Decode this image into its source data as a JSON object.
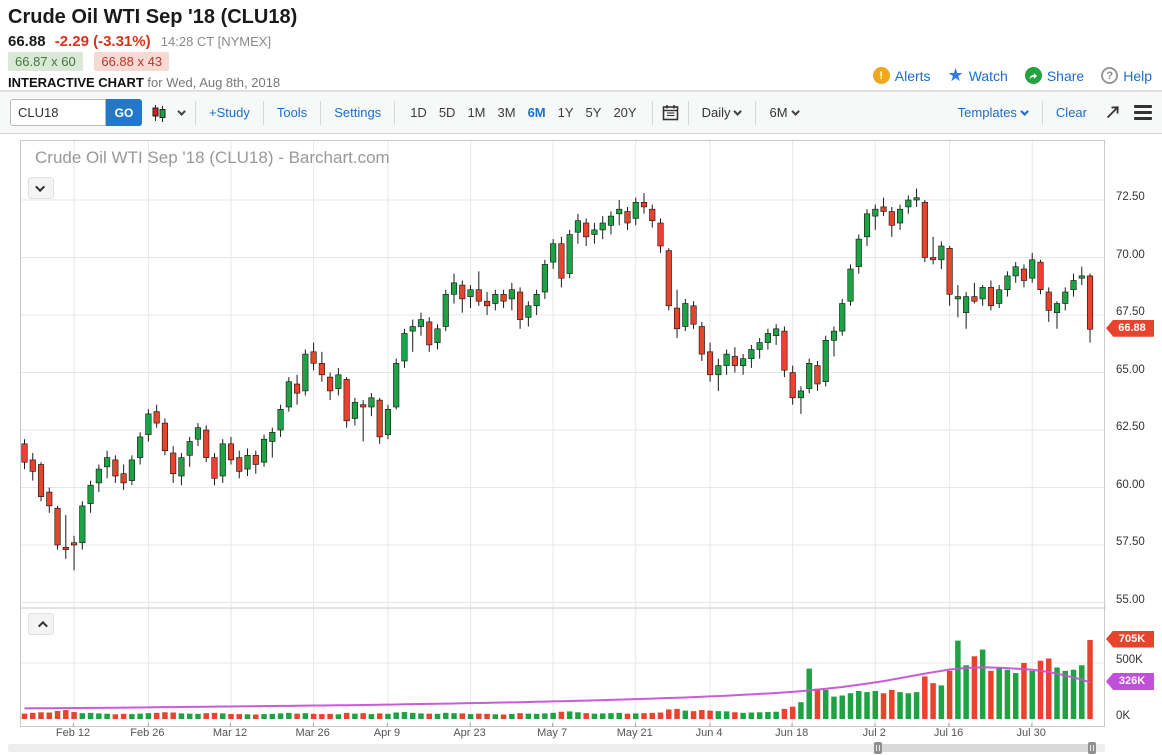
{
  "header": {
    "title": "Crude Oil WTI Sep '18 (CLU18)",
    "last": "66.88",
    "change": "-2.29 (-3.31%)",
    "time": "14:28 CT [NYMEX]",
    "bid": "66.87 x 60",
    "ask": "66.88 x 43",
    "chart_label": "INTERACTIVE CHART",
    "chart_date": "for Wed, Aug 8th, 2018",
    "actions": {
      "alerts": "Alerts",
      "watch": "Watch",
      "share": "Share",
      "help": "Help",
      "alert_glyph": "!",
      "help_glyph": "?",
      "star_glyph": "★"
    }
  },
  "toolbar": {
    "symbol_value": "CLU18",
    "go_label": "GO",
    "study": "+Study",
    "tools": "Tools",
    "settings": "Settings",
    "ranges": [
      "1D",
      "5D",
      "1M",
      "3M",
      "6M",
      "1Y",
      "5Y",
      "20Y"
    ],
    "active_range": "6M",
    "frequency": "Daily",
    "span": "6M",
    "templates": "Templates",
    "clear": "Clear"
  },
  "chart": {
    "watermark": "Crude Oil WTI Sep '18 (CLU18) - Barchart.com",
    "colors": {
      "up": "#1ea344",
      "down": "#e8432c",
      "open_interest": "#c653d6",
      "grid": "#e7e7e7",
      "separator": "#c9c9c9",
      "price_badge_bg": "#e8432c",
      "volume_badge_bg": "#e8432c",
      "oi_badge_bg": "#c050d8"
    }
  },
  "chart_data": {
    "type": "candlestick+volume",
    "symbol": "CLU18",
    "frequency": "Daily",
    "title": "Crude Oil WTI Sep '18 (CLU18) - Barchart.com",
    "last_price": 66.88,
    "price_gridlines": [
      72.5,
      70.0,
      67.5,
      65.0,
      62.5,
      60.0,
      57.5,
      55.0
    ],
    "volume_gridlines_k": [
      500,
      0
    ],
    "volume_badge_k": 705,
    "oi_badge_k": 326,
    "x_ticks": [
      {
        "label": "Feb 12",
        "i": 6
      },
      {
        "label": "Feb 26",
        "i": 15
      },
      {
        "label": "Mar 12",
        "i": 25
      },
      {
        "label": "Mar 26",
        "i": 35
      },
      {
        "label": "Apr 9",
        "i": 44
      },
      {
        "label": "Apr 23",
        "i": 54
      },
      {
        "label": "May 7",
        "i": 64
      },
      {
        "label": "May 21",
        "i": 74
      },
      {
        "label": "Jun 4",
        "i": 83
      },
      {
        "label": "Jun 18",
        "i": 93
      },
      {
        "label": "Jul 2",
        "i": 103
      },
      {
        "label": "Jul 16",
        "i": 112
      },
      {
        "label": "Jul 30",
        "i": 122
      }
    ],
    "ohlcv": [
      [
        61.9,
        62.1,
        60.8,
        61.1,
        48
      ],
      [
        61.2,
        61.5,
        60.3,
        60.7,
        55
      ],
      [
        61.0,
        61.1,
        59.4,
        59.6,
        60
      ],
      [
        59.8,
        60.0,
        58.9,
        59.2,
        58
      ],
      [
        59.1,
        59.2,
        57.3,
        57.5,
        72
      ],
      [
        57.4,
        58.8,
        56.9,
        57.3,
        80
      ],
      [
        57.6,
        57.9,
        56.4,
        57.5,
        62
      ],
      [
        57.6,
        59.4,
        57.3,
        59.2,
        52
      ],
      [
        59.3,
        60.3,
        58.9,
        60.1,
        55
      ],
      [
        60.2,
        61.0,
        59.8,
        60.8,
        50
      ],
      [
        60.9,
        61.6,
        60.4,
        61.3,
        47
      ],
      [
        61.2,
        61.4,
        60.2,
        60.5,
        42
      ],
      [
        60.6,
        61.0,
        59.9,
        60.2,
        46
      ],
      [
        60.3,
        61.4,
        60.1,
        61.2,
        44
      ],
      [
        61.3,
        62.4,
        61.0,
        62.2,
        48
      ],
      [
        62.3,
        63.4,
        62.0,
        63.2,
        52
      ],
      [
        63.3,
        63.6,
        62.6,
        62.8,
        55
      ],
      [
        62.8,
        63.0,
        61.4,
        61.6,
        60
      ],
      [
        61.5,
        61.8,
        60.2,
        60.6,
        58
      ],
      [
        60.5,
        61.5,
        60.1,
        61.3,
        50
      ],
      [
        61.4,
        62.2,
        60.9,
        62.0,
        48
      ],
      [
        62.1,
        62.8,
        61.8,
        62.6,
        46
      ],
      [
        62.5,
        62.7,
        61.1,
        61.3,
        52
      ],
      [
        61.3,
        61.5,
        60.1,
        60.4,
        55
      ],
      [
        60.5,
        62.1,
        60.2,
        61.9,
        50
      ],
      [
        61.9,
        62.2,
        61.0,
        61.2,
        45
      ],
      [
        61.3,
        61.6,
        60.4,
        60.7,
        44
      ],
      [
        60.8,
        61.7,
        60.5,
        61.4,
        42
      ],
      [
        61.4,
        61.6,
        60.6,
        61.0,
        40
      ],
      [
        61.1,
        62.3,
        60.9,
        62.1,
        44
      ],
      [
        62.0,
        62.6,
        61.3,
        62.4,
        46
      ],
      [
        62.5,
        63.6,
        62.2,
        63.4,
        50
      ],
      [
        63.5,
        64.8,
        63.3,
        64.6,
        55
      ],
      [
        64.5,
        64.9,
        63.6,
        64.1,
        48
      ],
      [
        64.2,
        66.0,
        64.0,
        65.8,
        52
      ],
      [
        65.9,
        66.3,
        65.1,
        65.4,
        46
      ],
      [
        65.4,
        65.9,
        64.6,
        64.9,
        44
      ],
      [
        64.8,
        65.0,
        63.8,
        64.2,
        46
      ],
      [
        64.3,
        65.2,
        64.0,
        64.9,
        42
      ],
      [
        64.7,
        64.8,
        62.6,
        62.9,
        55
      ],
      [
        63.0,
        63.9,
        62.7,
        63.7,
        48
      ],
      [
        63.6,
        63.8,
        62.0,
        63.5,
        52
      ],
      [
        63.5,
        64.1,
        63.1,
        63.9,
        44
      ],
      [
        63.8,
        63.9,
        61.9,
        62.2,
        50
      ],
      [
        62.3,
        63.6,
        62.1,
        63.4,
        46
      ],
      [
        63.5,
        65.6,
        63.4,
        65.4,
        58
      ],
      [
        65.5,
        66.9,
        65.2,
        66.7,
        62
      ],
      [
        66.8,
        67.3,
        65.9,
        67.0,
        55
      ],
      [
        67.0,
        67.6,
        66.6,
        67.3,
        50
      ],
      [
        67.2,
        67.4,
        65.9,
        66.2,
        48
      ],
      [
        66.3,
        67.1,
        66.0,
        66.9,
        46
      ],
      [
        67.0,
        68.6,
        66.8,
        68.4,
        55
      ],
      [
        68.4,
        69.3,
        68.0,
        68.9,
        52
      ],
      [
        68.8,
        69.0,
        67.6,
        68.2,
        50
      ],
      [
        68.3,
        68.8,
        67.8,
        68.6,
        44
      ],
      [
        68.6,
        69.4,
        67.9,
        68.1,
        48
      ],
      [
        68.1,
        68.5,
        67.5,
        67.9,
        46
      ],
      [
        68.0,
        68.6,
        67.7,
        68.4,
        42
      ],
      [
        68.4,
        68.6,
        67.8,
        68.1,
        40
      ],
      [
        68.2,
        68.9,
        67.7,
        68.6,
        45
      ],
      [
        68.5,
        68.7,
        66.9,
        67.3,
        52
      ],
      [
        67.4,
        68.1,
        67.0,
        67.9,
        48
      ],
      [
        67.9,
        68.6,
        67.5,
        68.4,
        46
      ],
      [
        68.5,
        69.9,
        68.2,
        69.7,
        50
      ],
      [
        69.8,
        70.8,
        69.5,
        70.6,
        55
      ],
      [
        70.6,
        70.9,
        68.7,
        69.1,
        65
      ],
      [
        69.3,
        71.2,
        69.1,
        71.0,
        68
      ],
      [
        71.1,
        71.9,
        70.6,
        71.6,
        60
      ],
      [
        71.5,
        71.7,
        70.5,
        70.9,
        52
      ],
      [
        71.0,
        71.5,
        70.6,
        71.2,
        48
      ],
      [
        71.2,
        71.8,
        70.8,
        71.5,
        50
      ],
      [
        71.4,
        72.0,
        71.0,
        71.8,
        52
      ],
      [
        71.9,
        72.5,
        71.4,
        72.1,
        55
      ],
      [
        72.0,
        72.2,
        71.2,
        71.5,
        48
      ],
      [
        71.7,
        72.6,
        71.4,
        72.4,
        50
      ],
      [
        72.4,
        72.8,
        71.9,
        72.2,
        52
      ],
      [
        72.1,
        72.3,
        71.3,
        71.6,
        55
      ],
      [
        71.5,
        71.7,
        70.2,
        70.5,
        58
      ],
      [
        70.3,
        70.4,
        67.7,
        67.9,
        85
      ],
      [
        67.8,
        68.6,
        66.5,
        66.9,
        90
      ],
      [
        67.0,
        68.2,
        66.8,
        68.0,
        75
      ],
      [
        67.9,
        68.1,
        66.9,
        67.1,
        70
      ],
      [
        67.0,
        67.2,
        65.5,
        65.8,
        80
      ],
      [
        65.9,
        66.3,
        64.6,
        64.9,
        75
      ],
      [
        64.9,
        65.6,
        64.2,
        65.3,
        70
      ],
      [
        65.3,
        66.0,
        64.9,
        65.8,
        68
      ],
      [
        65.7,
        66.1,
        65.0,
        65.3,
        60
      ],
      [
        65.3,
        65.8,
        64.9,
        65.6,
        55
      ],
      [
        65.6,
        66.2,
        65.2,
        66.0,
        58
      ],
      [
        66.0,
        66.5,
        65.6,
        66.3,
        60
      ],
      [
        66.3,
        66.9,
        66.0,
        66.7,
        62
      ],
      [
        66.6,
        67.1,
        66.2,
        66.9,
        65
      ],
      [
        66.8,
        67.0,
        64.8,
        65.1,
        90
      ],
      [
        65.0,
        65.3,
        63.6,
        63.9,
        110
      ],
      [
        63.9,
        64.4,
        63.2,
        64.2,
        150
      ],
      [
        64.3,
        65.6,
        64.1,
        65.4,
        450
      ],
      [
        65.3,
        65.5,
        64.2,
        64.5,
        270
      ],
      [
        64.6,
        66.6,
        64.4,
        66.4,
        260
      ],
      [
        66.4,
        67.0,
        65.7,
        66.8,
        200
      ],
      [
        66.8,
        68.2,
        66.6,
        68.0,
        210
      ],
      [
        68.1,
        69.7,
        67.9,
        69.5,
        230
      ],
      [
        69.6,
        71.0,
        69.3,
        70.8,
        250
      ],
      [
        70.9,
        72.1,
        70.5,
        71.9,
        240
      ],
      [
        71.8,
        72.3,
        71.2,
        72.1,
        250
      ],
      [
        72.2,
        72.6,
        71.8,
        72.0,
        230
      ],
      [
        72.0,
        72.2,
        70.9,
        71.4,
        260
      ],
      [
        71.5,
        72.3,
        71.2,
        72.1,
        240
      ],
      [
        72.2,
        72.7,
        71.9,
        72.5,
        230
      ],
      [
        72.5,
        73.0,
        72.2,
        72.6,
        240
      ],
      [
        72.4,
        72.5,
        69.8,
        70.0,
        380
      ],
      [
        70.0,
        70.9,
        69.7,
        69.9,
        320
      ],
      [
        69.9,
        70.7,
        69.5,
        70.5,
        300
      ],
      [
        70.4,
        70.5,
        67.9,
        68.4,
        430
      ],
      [
        68.2,
        68.8,
        67.4,
        68.3,
        700
      ],
      [
        67.6,
        68.5,
        66.9,
        68.3,
        480
      ],
      [
        68.3,
        68.9,
        68.0,
        68.1,
        560
      ],
      [
        68.2,
        68.8,
        67.9,
        68.7,
        620
      ],
      [
        68.7,
        69.0,
        67.7,
        67.9,
        430
      ],
      [
        68.0,
        68.8,
        67.8,
        68.6,
        460
      ],
      [
        68.6,
        69.4,
        68.3,
        69.2,
        440
      ],
      [
        69.2,
        69.8,
        68.9,
        69.6,
        410
      ],
      [
        69.5,
        69.7,
        68.7,
        69.0,
        500
      ],
      [
        69.1,
        70.2,
        68.9,
        69.9,
        430
      ],
      [
        69.8,
        69.9,
        68.4,
        68.6,
        520
      ],
      [
        68.5,
        68.7,
        67.2,
        67.7,
        540
      ],
      [
        67.6,
        68.1,
        66.9,
        68.0,
        460
      ],
      [
        68.0,
        68.7,
        67.7,
        68.5,
        430
      ],
      [
        68.6,
        69.3,
        68.3,
        69.0,
        440
      ],
      [
        69.1,
        69.6,
        68.8,
        69.2,
        480
      ],
      [
        69.2,
        69.3,
        66.3,
        66.88,
        705
      ]
    ],
    "open_interest_k": [
      [
        0,
        95
      ],
      [
        10,
        100
      ],
      [
        20,
        108
      ],
      [
        30,
        116
      ],
      [
        40,
        124
      ],
      [
        50,
        136
      ],
      [
        60,
        150
      ],
      [
        70,
        168
      ],
      [
        80,
        192
      ],
      [
        85,
        208
      ],
      [
        90,
        228
      ],
      [
        93,
        242
      ],
      [
        96,
        262
      ],
      [
        99,
        286
      ],
      [
        102,
        316
      ],
      [
        104,
        338
      ],
      [
        106,
        365
      ],
      [
        108,
        392
      ],
      [
        110,
        418
      ],
      [
        112,
        442
      ],
      [
        114,
        456
      ],
      [
        116,
        462
      ],
      [
        118,
        458
      ],
      [
        120,
        450
      ],
      [
        122,
        440
      ],
      [
        124,
        420
      ],
      [
        126,
        388
      ],
      [
        128,
        352
      ],
      [
        129,
        326
      ]
    ]
  }
}
